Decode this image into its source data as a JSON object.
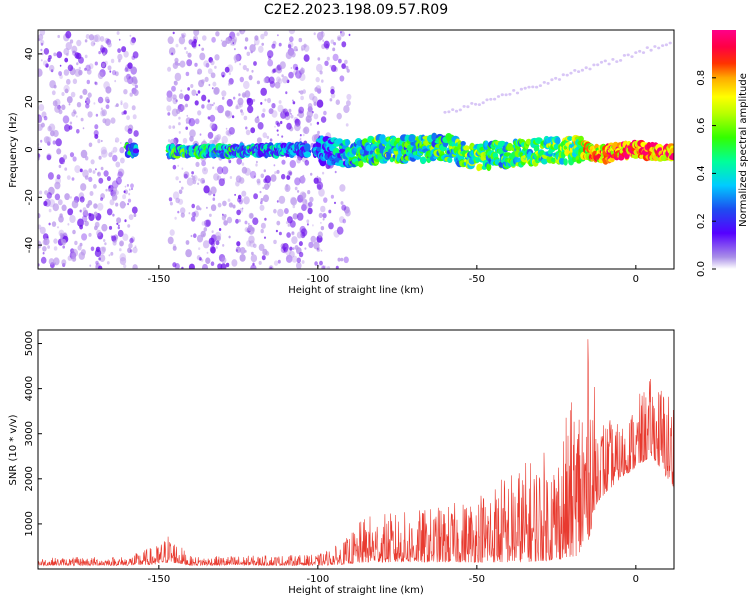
{
  "title": "C2E2.2023.198.09.57.R09",
  "chart_data": [
    {
      "type": "heatmap",
      "title": "C2E2.2023.198.09.57.R09",
      "xlabel": "Height of straight line (km)",
      "ylabel": "Frequency (Hz)",
      "xlim": [
        -188,
        12
      ],
      "ylim": [
        -50,
        50
      ],
      "x_ticks": [
        -150,
        -100,
        -50,
        0
      ],
      "y_ticks": [
        -40,
        -20,
        0,
        20,
        40
      ],
      "colorbar": {
        "label": "Normalized spectral amplitude",
        "ticks": [
          0.0,
          0.2,
          0.4,
          0.6,
          0.8
        ],
        "tick_labels": [
          "0.0",
          "0.2",
          "0.4",
          "0.6",
          "0.8"
        ],
        "range": [
          0,
          1
        ],
        "colormap": "gist_ncar"
      },
      "noise_segments_km": [
        [
          -188,
          -157
        ],
        [
          -147,
          -103
        ],
        [
          -103,
          -90
        ]
      ],
      "signal_band": {
        "description_points": [
          {
            "x": -160,
            "f": 0,
            "a": 0.35
          },
          {
            "x": -150,
            "f": -1,
            "a": 0.45
          },
          {
            "x": -100,
            "f": 0,
            "a": 0.2
          },
          {
            "x": -90,
            "f": -2,
            "a": 0.3
          },
          {
            "x": -80,
            "f": 0,
            "a": 0.5
          },
          {
            "x": -70,
            "f": 0,
            "a": 0.4
          },
          {
            "x": -60,
            "f": 1,
            "a": 0.45
          },
          {
            "x": -50,
            "f": -3,
            "a": 0.5
          },
          {
            "x": -40,
            "f": -2,
            "a": 0.45
          },
          {
            "x": -30,
            "f": -1,
            "a": 0.5
          },
          {
            "x": -20,
            "f": 0,
            "a": 0.55
          },
          {
            "x": -10,
            "f": -2,
            "a": 0.8
          },
          {
            "x": 0,
            "f": 0,
            "a": 0.85
          },
          {
            "x": 10,
            "f": -1,
            "a": 0.85
          }
        ]
      }
    },
    {
      "type": "line",
      "xlabel": "Height of straight line (km)",
      "ylabel": "SNR (10 * v/v)",
      "xlim": [
        -188,
        12
      ],
      "ylim": [
        0,
        5300
      ],
      "x_ticks": [
        -150,
        -100,
        -50,
        0
      ],
      "y_ticks": [
        1000,
        2000,
        3000,
        4000,
        5000
      ],
      "line_color": "#e83a2f",
      "envelope": [
        {
          "x": -188,
          "lo": 80,
          "hi": 250
        },
        {
          "x": -160,
          "lo": 80,
          "hi": 280
        },
        {
          "x": -150,
          "lo": 100,
          "hi": 550
        },
        {
          "x": -147,
          "lo": 150,
          "hi": 800
        },
        {
          "x": -140,
          "lo": 80,
          "hi": 280
        },
        {
          "x": -100,
          "lo": 80,
          "hi": 320
        },
        {
          "x": -92,
          "lo": 100,
          "hi": 600
        },
        {
          "x": -85,
          "lo": 150,
          "hi": 1200
        },
        {
          "x": -70,
          "lo": 150,
          "hi": 1300
        },
        {
          "x": -55,
          "lo": 150,
          "hi": 1500
        },
        {
          "x": -45,
          "lo": 150,
          "hi": 2000
        },
        {
          "x": -35,
          "lo": 150,
          "hi": 2400
        },
        {
          "x": -25,
          "lo": 200,
          "hi": 2800
        },
        {
          "x": -18,
          "lo": 300,
          "hi": 4200
        },
        {
          "x": -15,
          "lo": 600,
          "hi": 5200
        },
        {
          "x": -12,
          "lo": 1500,
          "hi": 3500
        },
        {
          "x": -5,
          "lo": 2000,
          "hi": 3200
        },
        {
          "x": 5,
          "lo": 2500,
          "hi": 4300
        },
        {
          "x": 12,
          "lo": 1800,
          "hi": 4000
        }
      ]
    }
  ]
}
